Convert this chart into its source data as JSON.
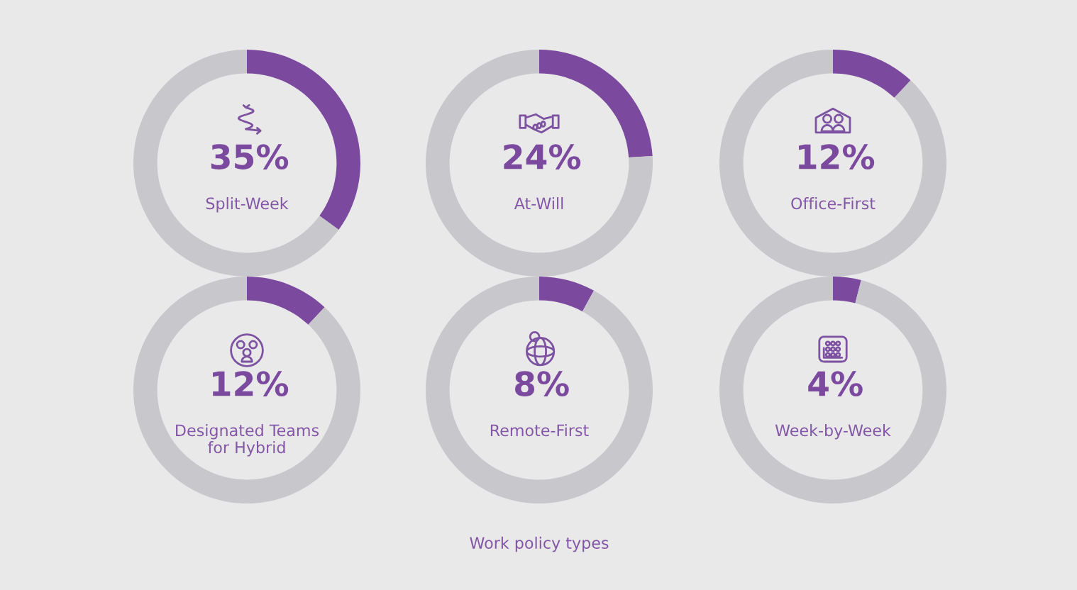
{
  "chart_data": [
    {
      "type": "donut",
      "title": "Split-Week",
      "categories": [
        null,
        null
      ],
      "values": [
        35,
        65
      ],
      "colors": [
        "#7b4a9e",
        "#c8c7cc"
      ],
      "value_labels": [
        "35%",
        null
      ]
    },
    {
      "type": "donut",
      "title": "At-Will",
      "categories": [
        null,
        null
      ],
      "values": [
        24,
        76
      ],
      "colors": [
        "#7b4a9e",
        "#c8c7cc"
      ],
      "value_labels": [
        "24%",
        null
      ]
    },
    {
      "type": "donut",
      "title": "Office-First",
      "categories": [
        null,
        null
      ],
      "values": [
        12,
        88
      ],
      "colors": [
        "#7b4a9e",
        "#c8c7cc"
      ],
      "value_labels": [
        "12%",
        null
      ]
    },
    {
      "type": "donut",
      "title": "Designated Teams for Hybrid",
      "categories": [
        null,
        null
      ],
      "values": [
        12,
        88
      ],
      "colors": [
        "#7b4a9e",
        "#c8c7cc"
      ],
      "value_labels": [
        "12%",
        null
      ]
    },
    {
      "type": "donut",
      "title": "Remote-First",
      "categories": [
        null,
        null
      ],
      "values": [
        8,
        92
      ],
      "colors": [
        "#7b4a9e",
        "#c8c7cc"
      ],
      "value_labels": [
        "8%",
        null
      ],
      "annotations": [
        "Work policy types"
      ]
    },
    {
      "type": "donut",
      "title": "Week-by-Week",
      "categories": [
        null,
        null
      ],
      "values": [
        4,
        96
      ],
      "colors": [
        "#7b4a9e",
        "#c8c7cc"
      ],
      "value_labels": [
        "4%",
        null
      ]
    }
  ]
}
